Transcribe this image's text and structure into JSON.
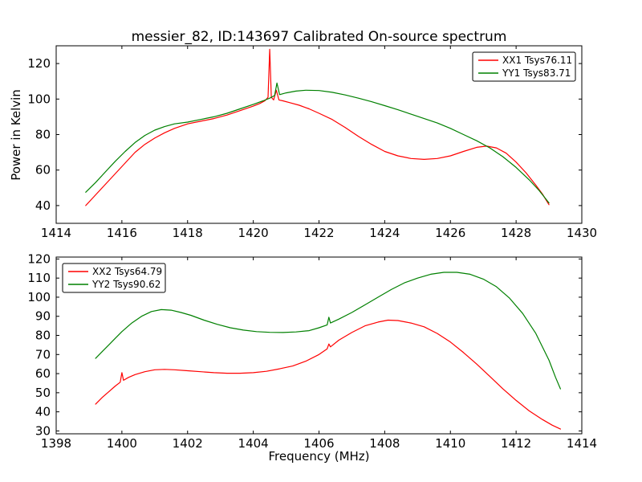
{
  "chart_data": [
    {
      "type": "line",
      "name": "top-spectrum",
      "title": "messier_82, ID:143697 Calibrated On-source spectrum",
      "xlabel": "",
      "ylabel": "Power in Kelvin",
      "xlim": [
        1414,
        1430
      ],
      "ylim": [
        30,
        130
      ],
      "xticks": [
        1414,
        1416,
        1418,
        1420,
        1422,
        1424,
        1426,
        1428,
        1430
      ],
      "yticks": [
        40,
        60,
        80,
        100,
        120
      ],
      "grid": false,
      "legend": {
        "location": "upper right"
      },
      "series": [
        {
          "name": "XX1 Tsys76.11",
          "color": "#ff0000",
          "x": [
            1414.9,
            1415.2,
            1415.5,
            1415.8,
            1416.1,
            1416.4,
            1416.7,
            1417.0,
            1417.3,
            1417.6,
            1418.0,
            1418.4,
            1418.8,
            1419.2,
            1419.6,
            1420.0,
            1420.2,
            1420.35,
            1420.45,
            1420.5,
            1420.55,
            1420.62,
            1420.7,
            1420.78,
            1420.9,
            1421.1,
            1421.4,
            1421.7,
            1422.0,
            1422.4,
            1422.8,
            1423.2,
            1423.6,
            1424.0,
            1424.4,
            1424.8,
            1425.2,
            1425.6,
            1426.0,
            1426.4,
            1426.8,
            1427.1,
            1427.4,
            1427.7,
            1428.0,
            1428.3,
            1428.6,
            1428.8,
            1429.0
          ],
          "y": [
            40,
            46,
            52,
            58,
            64,
            70,
            74.5,
            78,
            81,
            83.5,
            86,
            87.5,
            89,
            91,
            93.5,
            96,
            97.5,
            99,
            101,
            128,
            101,
            99.5,
            105,
            99.5,
            99,
            98,
            96.5,
            94.5,
            92,
            88.5,
            84,
            79,
            74.5,
            70.5,
            68,
            66.5,
            66,
            66.5,
            68,
            70.5,
            72.8,
            73.5,
            72.5,
            69.5,
            64.5,
            58.5,
            51.5,
            46.5,
            40.5
          ]
        },
        {
          "name": "YY1 Tsys83.71",
          "color": "#008000",
          "x": [
            1414.9,
            1415.2,
            1415.5,
            1415.8,
            1416.1,
            1416.4,
            1416.7,
            1417.0,
            1417.3,
            1417.6,
            1418.0,
            1418.4,
            1418.8,
            1419.2,
            1419.6,
            1420.0,
            1420.3,
            1420.5,
            1420.65,
            1420.72,
            1420.8,
            1421.0,
            1421.3,
            1421.6,
            1422.0,
            1422.4,
            1422.8,
            1423.2,
            1423.6,
            1424.0,
            1424.4,
            1424.8,
            1425.2,
            1425.6,
            1426.0,
            1426.4,
            1426.8,
            1427.2,
            1427.6,
            1428.0,
            1428.4,
            1428.7,
            1429.0
          ],
          "y": [
            47.5,
            53,
            59,
            65,
            70.5,
            75.5,
            79.5,
            82.5,
            84.5,
            86,
            87,
            88.5,
            90,
            92,
            94.5,
            97,
            99,
            100.5,
            102,
            109,
            102.5,
            103.5,
            104.5,
            105,
            104.8,
            103.8,
            102.3,
            100.5,
            98.5,
            96.3,
            94,
            91.5,
            89,
            86.5,
            83.5,
            80,
            76.5,
            72.5,
            67.5,
            61.5,
            54.5,
            48.5,
            41.5
          ]
        }
      ]
    },
    {
      "type": "line",
      "name": "bottom-spectrum",
      "title": "",
      "xlabel": "Frequency (MHz)",
      "ylabel": "",
      "xlim": [
        1398,
        1414
      ],
      "ylim": [
        28.5,
        121
      ],
      "xticks": [
        1398,
        1400,
        1402,
        1404,
        1406,
        1408,
        1410,
        1412,
        1414
      ],
      "yticks": [
        30,
        40,
        50,
        60,
        70,
        80,
        90,
        100,
        110,
        120
      ],
      "grid": false,
      "legend": {
        "location": "upper left"
      },
      "series": [
        {
          "name": "XX2 Tsys64.79",
          "color": "#ff0000",
          "x": [
            1399.2,
            1399.4,
            1399.6,
            1399.8,
            1399.95,
            1400.0,
            1400.05,
            1400.2,
            1400.4,
            1400.7,
            1401.0,
            1401.3,
            1401.6,
            1402.0,
            1402.4,
            1402.8,
            1403.2,
            1403.6,
            1404.0,
            1404.4,
            1404.8,
            1405.2,
            1405.6,
            1406.0,
            1406.25,
            1406.3,
            1406.35,
            1406.6,
            1407.0,
            1407.4,
            1407.8,
            1408.1,
            1408.4,
            1408.8,
            1409.2,
            1409.6,
            1410.0,
            1410.4,
            1410.8,
            1411.2,
            1411.6,
            1412.0,
            1412.4,
            1412.8,
            1413.1,
            1413.35
          ],
          "y": [
            44,
            47.5,
            50.5,
            53.5,
            55.5,
            60.5,
            56.5,
            58,
            59.5,
            61,
            62,
            62.2,
            62,
            61.5,
            61,
            60.5,
            60.2,
            60.2,
            60.5,
            61.2,
            62.5,
            64,
            66.5,
            70,
            73,
            75.5,
            74,
            77.5,
            81.5,
            85,
            87,
            88,
            87.8,
            86.5,
            84.5,
            81,
            76.5,
            71,
            65,
            58.5,
            52,
            46,
            40.5,
            36,
            33,
            31
          ]
        },
        {
          "name": "YY2 Tsys90.62",
          "color": "#008000",
          "x": [
            1399.2,
            1399.4,
            1399.6,
            1399.8,
            1400.0,
            1400.3,
            1400.6,
            1400.9,
            1401.2,
            1401.5,
            1401.8,
            1402.1,
            1402.5,
            1402.9,
            1403.3,
            1403.7,
            1404.1,
            1404.5,
            1404.9,
            1405.3,
            1405.7,
            1406.0,
            1406.25,
            1406.3,
            1406.35,
            1406.6,
            1407.0,
            1407.4,
            1407.8,
            1408.2,
            1408.6,
            1409.0,
            1409.4,
            1409.8,
            1410.2,
            1410.6,
            1411.0,
            1411.4,
            1411.8,
            1412.2,
            1412.6,
            1413.0,
            1413.2,
            1413.35
          ],
          "y": [
            68,
            71.5,
            75,
            78.5,
            82,
            86.5,
            90,
            92.5,
            93.5,
            93.2,
            92,
            90.5,
            88,
            85.8,
            84,
            82.8,
            82,
            81.6,
            81.5,
            81.8,
            82.5,
            84,
            85.5,
            89.5,
            86.5,
            88.5,
            92,
            96,
            100,
            104,
            107.5,
            110,
            112,
            113,
            113,
            112,
            109.5,
            105.5,
            99.5,
            91.5,
            81,
            67,
            58,
            52
          ]
        }
      ]
    }
  ]
}
